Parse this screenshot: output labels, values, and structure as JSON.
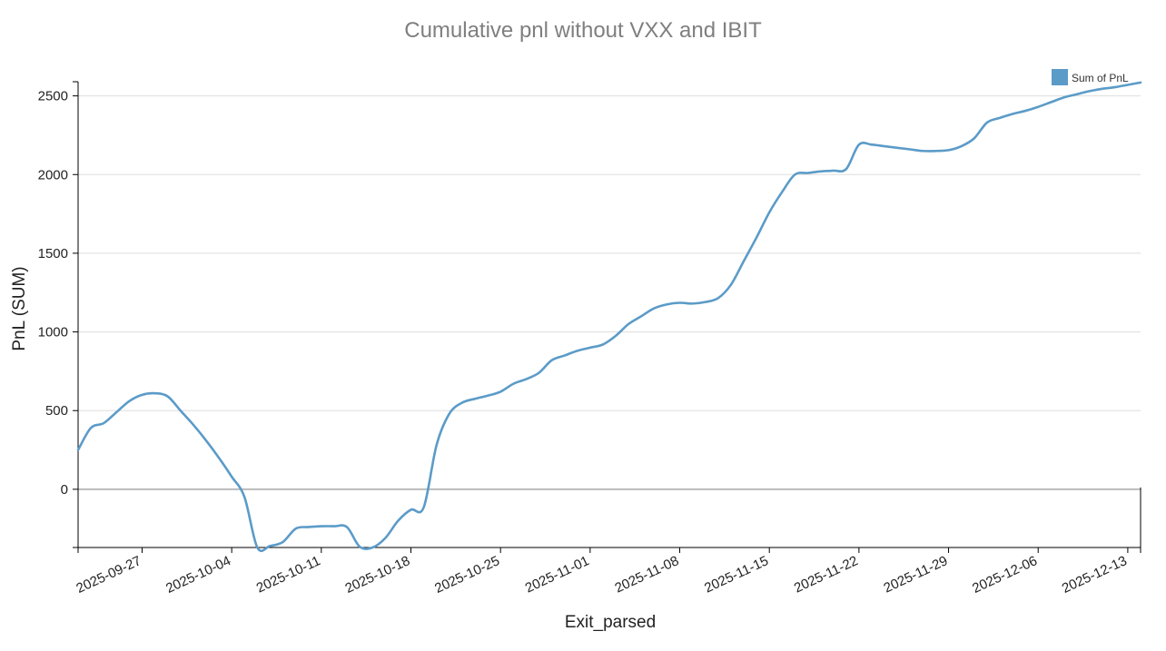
{
  "chart_data": {
    "type": "line",
    "title": "Cumulative pnl without VXX and IBIT",
    "xlabel": "Exit_parsed",
    "ylabel": "PnL (SUM)",
    "x_type": "date",
    "xlim": [
      "2025-09-22",
      "2025-12-14"
    ],
    "ylim": [
      -370,
      2590
    ],
    "yticks": [
      0,
      500,
      1000,
      1500,
      2000,
      2500
    ],
    "xticks": [
      "2025-09-27",
      "2025-10-04",
      "2025-10-11",
      "2025-10-18",
      "2025-10-25",
      "2025-11-01",
      "2025-11-08",
      "2025-11-15",
      "2025-11-22",
      "2025-11-29",
      "2025-12-06",
      "2025-12-13"
    ],
    "grid": true,
    "legend_position": "top-right",
    "series": [
      {
        "name": "Sum of PnL",
        "color": "#5b9bc8",
        "x": [
          "2025-09-22",
          "2025-09-23",
          "2025-09-24",
          "2025-09-25",
          "2025-09-26",
          "2025-09-27",
          "2025-09-28",
          "2025-09-29",
          "2025-09-30",
          "2025-10-01",
          "2025-10-02",
          "2025-10-03",
          "2025-10-04",
          "2025-10-05",
          "2025-10-06",
          "2025-10-07",
          "2025-10-08",
          "2025-10-09",
          "2025-10-10",
          "2025-10-11",
          "2025-10-12",
          "2025-10-13",
          "2025-10-14",
          "2025-10-15",
          "2025-10-16",
          "2025-10-17",
          "2025-10-18",
          "2025-10-19",
          "2025-10-20",
          "2025-10-21",
          "2025-10-22",
          "2025-10-23",
          "2025-10-24",
          "2025-10-25",
          "2025-10-26",
          "2025-10-27",
          "2025-10-28",
          "2025-10-29",
          "2025-10-30",
          "2025-10-31",
          "2025-11-01",
          "2025-11-02",
          "2025-11-03",
          "2025-11-04",
          "2025-11-05",
          "2025-11-06",
          "2025-11-07",
          "2025-11-08",
          "2025-11-09",
          "2025-11-10",
          "2025-11-11",
          "2025-11-12",
          "2025-11-13",
          "2025-11-14",
          "2025-11-15",
          "2025-11-16",
          "2025-11-17",
          "2025-11-18",
          "2025-11-19",
          "2025-11-20",
          "2025-11-21",
          "2025-11-22",
          "2025-11-23",
          "2025-11-24",
          "2025-11-25",
          "2025-11-26",
          "2025-11-27",
          "2025-11-28",
          "2025-11-29",
          "2025-11-30",
          "2025-12-01",
          "2025-12-02",
          "2025-12-03",
          "2025-12-04",
          "2025-12-05",
          "2025-12-06",
          "2025-12-07",
          "2025-12-08",
          "2025-12-09",
          "2025-12-10",
          "2025-12-11",
          "2025-12-12",
          "2025-12-13",
          "2025-12-14"
        ],
        "values": [
          250,
          390,
          420,
          490,
          560,
          600,
          610,
          590,
          500,
          410,
          310,
          200,
          80,
          -50,
          -370,
          -360,
          -335,
          -250,
          -240,
          -235,
          -235,
          -240,
          -365,
          -370,
          -310,
          -200,
          -130,
          -115,
          280,
          480,
          550,
          575,
          595,
          620,
          670,
          700,
          740,
          820,
          850,
          880,
          900,
          920,
          975,
          1050,
          1100,
          1150,
          1175,
          1185,
          1180,
          1190,
          1215,
          1300,
          1450,
          1600,
          1760,
          1890,
          2000,
          2010,
          2020,
          2025,
          2035,
          2190,
          2190,
          2180,
          2170,
          2160,
          2150,
          2150,
          2155,
          2180,
          2230,
          2330,
          2360,
          2385,
          2405,
          2430,
          2460,
          2490,
          2510,
          2530,
          2545,
          2555,
          2570,
          2585
        ]
      }
    ]
  }
}
